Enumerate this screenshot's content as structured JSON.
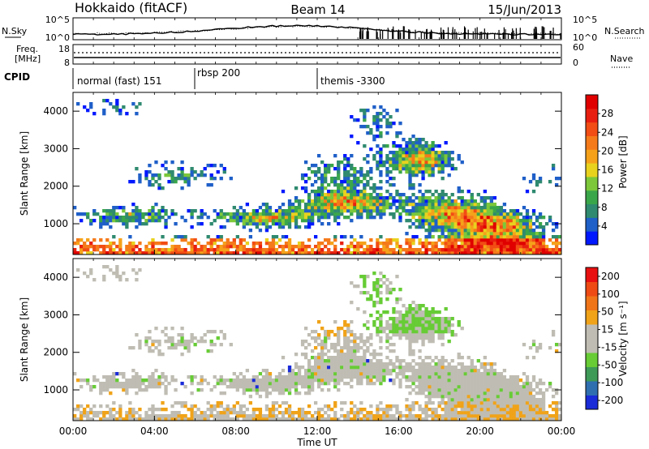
{
  "header": {
    "radar": "Hokkaido (fitACF)",
    "beam": "Beam 14",
    "date": "15/Jun/2013"
  },
  "noise_panel": {
    "left_label": "N.Sky",
    "right_label": "N.Search",
    "left_ticks": [
      "10^5",
      "10^0"
    ],
    "right_ticks": [
      "10^5",
      "10^0"
    ]
  },
  "freq_panel": {
    "label_line1": "Freq.",
    "label_line2": "[MHz]",
    "left_ticks": [
      "18",
      "8"
    ],
    "right_ticks": [
      "60",
      "0"
    ],
    "right_label": "Nave"
  },
  "cpid": {
    "label": "CPID",
    "segments": [
      {
        "text": "normal (fast) 151",
        "start_hour": 0
      },
      {
        "text": "rbsp 200",
        "start_hour": 6
      },
      {
        "text": "themis -3300",
        "start_hour": 12
      }
    ]
  },
  "chart_data": [
    {
      "type": "heatmap",
      "name": "power",
      "xlabel": "",
      "ylabel": "Slant Range [km]",
      "xlim_hours": [
        0,
        24
      ],
      "ylim": [
        180,
        4500
      ],
      "yticks": [
        "1000",
        "2000",
        "3000",
        "4000"
      ],
      "colorbar": {
        "label": "Power [dB]",
        "ticks": [
          "4",
          "8",
          "12",
          "16",
          "20",
          "24",
          "28"
        ],
        "colors": [
          "#0018ff",
          "#1f5fc8",
          "#2f8a6f",
          "#3aa64a",
          "#7cc83a",
          "#e8d21e",
          "#f5a21a",
          "#f57a1a",
          "#f24d14",
          "#e81f10",
          "#e00000"
        ]
      }
    },
    {
      "type": "heatmap",
      "name": "velocity",
      "xlabel": "Time UT",
      "ylabel": "Slant Range [km]",
      "xlim_hours": [
        0,
        24
      ],
      "ylim": [
        180,
        4500
      ],
      "xticks": [
        "00:00",
        "04:00",
        "08:00",
        "12:00",
        "16:00",
        "20:00",
        "00:00"
      ],
      "yticks": [
        "1000",
        "2000",
        "3000",
        "4000"
      ],
      "colorbar": {
        "label": "Velocity [m s⁻¹]",
        "ticks": [
          "200",
          "100",
          "50",
          "15",
          "-15",
          "-50",
          "-100",
          "-200"
        ],
        "colors": [
          "#1a2bd8",
          "#2f6fb0",
          "#3e9a57",
          "#67cc35",
          "#bfbdb3",
          "#bfbdb3",
          "#f0a318",
          "#f07518",
          "#ee4a14",
          "#e81010"
        ]
      }
    }
  ]
}
